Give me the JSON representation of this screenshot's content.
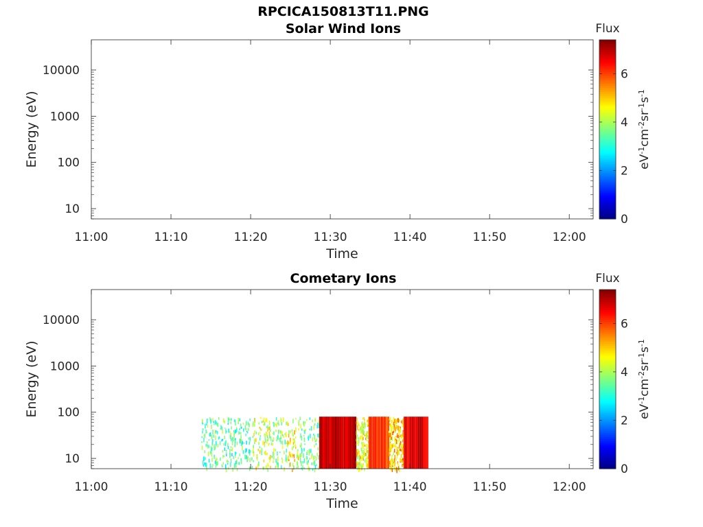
{
  "figure_title": "RPCICA150813T11.PNG",
  "chart_data": [
    {
      "type": "heatmap",
      "title": "Solar Wind Ions",
      "xlabel": "Time",
      "ylabel": "Energy (eV)",
      "y_scale": "log",
      "ylim": [
        6,
        45000
      ],
      "x_ticks": [
        "11:00",
        "11:10",
        "11:20",
        "11:30",
        "11:40",
        "11:50",
        "12:00"
      ],
      "xlim_minutes": [
        0,
        63
      ],
      "y_ticks": [
        {
          "value": 10,
          "label": "10"
        },
        {
          "value": 100,
          "label": "100"
        },
        {
          "value": 1000,
          "label": "1000"
        },
        {
          "value": 10000,
          "label": "10000"
        }
      ],
      "colorbar": {
        "label": "Flux",
        "units": "eV-1cm-2sr-1s-1",
        "range": [
          0,
          7.4
        ],
        "ticks": [
          "0",
          "2",
          "4",
          "6"
        ],
        "colormap": "jet"
      },
      "segments": []
    },
    {
      "type": "heatmap",
      "title": "Cometary Ions",
      "xlabel": "Time",
      "ylabel": "Energy (eV)",
      "y_scale": "log",
      "ylim": [
        6,
        45000
      ],
      "x_ticks": [
        "11:00",
        "11:10",
        "11:20",
        "11:30",
        "11:40",
        "11:50",
        "12:00"
      ],
      "xlim_minutes": [
        0,
        63
      ],
      "y_ticks": [
        {
          "value": 10,
          "label": "10"
        },
        {
          "value": 100,
          "label": "100"
        },
        {
          "value": 1000,
          "label": "1000"
        },
        {
          "value": 10000,
          "label": "10000"
        }
      ],
      "colorbar": {
        "label": "Flux",
        "units": "eV-1cm-2sr-1s-1",
        "range": [
          0,
          7.4
        ],
        "ticks": [
          "0",
          "2",
          "4",
          "6"
        ],
        "colormap": "jet"
      },
      "segments": [
        {
          "t_start": 13.8,
          "t_end": 20.0,
          "e_min": 6,
          "e_max": 80,
          "flux": 3.4,
          "density": "sparse"
        },
        {
          "t_start": 20.0,
          "t_end": 22.5,
          "e_min": 6,
          "e_max": 80,
          "flux": 4.2,
          "density": "sparse"
        },
        {
          "t_start": 22.5,
          "t_end": 24.5,
          "e_min": 6,
          "e_max": 80,
          "flux": 3.8,
          "density": "sparse"
        },
        {
          "t_start": 24.5,
          "t_end": 26.0,
          "e_min": 6,
          "e_max": 80,
          "flux": 4.6,
          "density": "sparse"
        },
        {
          "t_start": 26.0,
          "t_end": 28.6,
          "e_min": 6,
          "e_max": 80,
          "flux": 3.6,
          "density": "sparse"
        },
        {
          "t_start": 28.6,
          "t_end": 33.2,
          "e_min": 6,
          "e_max": 80,
          "flux": 6.8,
          "density": "dense"
        },
        {
          "t_start": 33.2,
          "t_end": 34.8,
          "e_min": 6,
          "e_max": 80,
          "flux": 4.5,
          "density": "medium"
        },
        {
          "t_start": 34.8,
          "t_end": 37.3,
          "e_min": 6,
          "e_max": 80,
          "flux": 6.0,
          "density": "dense"
        },
        {
          "t_start": 37.3,
          "t_end": 39.2,
          "e_min": 6,
          "e_max": 80,
          "flux": 5.0,
          "density": "medium"
        },
        {
          "t_start": 39.2,
          "t_end": 42.2,
          "e_min": 6,
          "e_max": 80,
          "flux": 6.7,
          "density": "dense"
        }
      ]
    }
  ]
}
